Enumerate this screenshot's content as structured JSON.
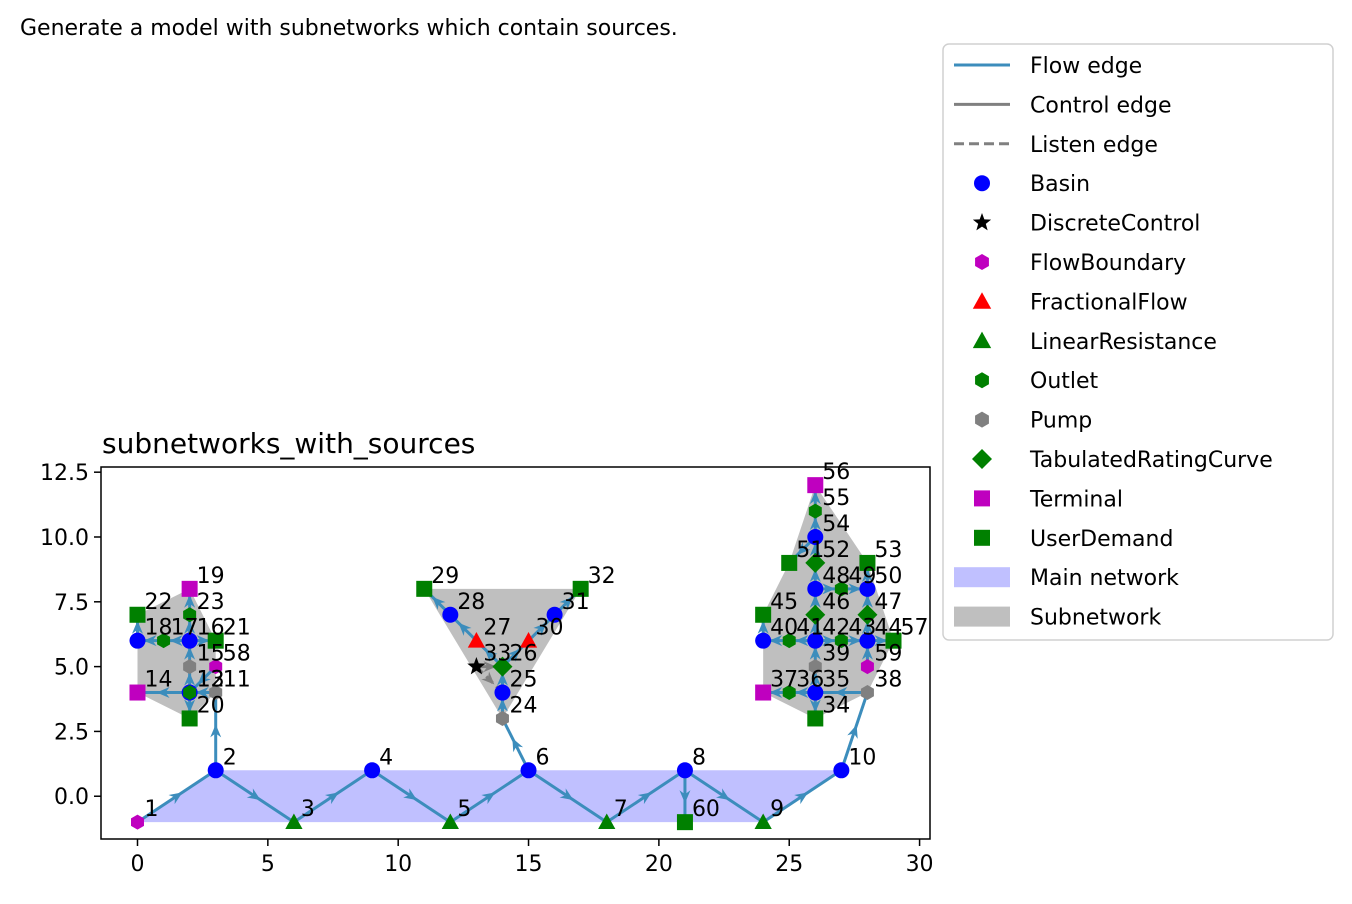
{
  "caption": "Generate a model with subnetworks which contain sources.",
  "title": "subnetworks_with_sources",
  "colors": {
    "flow_edge": "#3c8dbc",
    "control_edge": "#808080",
    "listen_edge": "#808080",
    "main_network": "#c0c0ff",
    "subnetwork": "#bfbfbf",
    "Basin": "#0000ff",
    "DiscreteControl": "#000000",
    "FlowBoundary": "#bf00bf",
    "FractionalFlow": "#ff0000",
    "LinearResistance": "#008000",
    "Outlet": "#008000",
    "Pump": "#808080",
    "TabulatedRatingCurve": "#008000",
    "Terminal": "#bf00bf",
    "UserDemand": "#008000"
  },
  "axes": {
    "xlim": [
      -1.4,
      30.4
    ],
    "ylim": [
      -1.65,
      12.7
    ],
    "xticks": [
      0,
      5,
      10,
      15,
      20,
      25,
      30
    ],
    "yticks": [
      0.0,
      2.5,
      5.0,
      7.5,
      10.0,
      12.5
    ],
    "xtick_labels": [
      "0",
      "5",
      "10",
      "15",
      "20",
      "25",
      "30"
    ],
    "ytick_labels": [
      "0.0",
      "2.5",
      "5.0",
      "7.5",
      "10.0",
      "12.5"
    ]
  },
  "legend": {
    "placement": "outside-right",
    "entries": [
      {
        "label": "Flow edge",
        "kind": "line",
        "style": "solid",
        "color": "#3c8dbc"
      },
      {
        "label": "Control edge",
        "kind": "line",
        "style": "solid",
        "color": "#808080"
      },
      {
        "label": "Listen edge",
        "kind": "line",
        "style": "dashed",
        "color": "#808080"
      },
      {
        "label": "Basin",
        "kind": "marker",
        "marker": "circle",
        "color": "#0000ff"
      },
      {
        "label": "DiscreteControl",
        "kind": "marker",
        "marker": "star",
        "color": "#000000"
      },
      {
        "label": "FlowBoundary",
        "kind": "marker",
        "marker": "hexagon",
        "color": "#bf00bf"
      },
      {
        "label": "FractionalFlow",
        "kind": "marker",
        "marker": "triangle",
        "color": "#ff0000"
      },
      {
        "label": "LinearResistance",
        "kind": "marker",
        "marker": "triangle",
        "color": "#008000"
      },
      {
        "label": "Outlet",
        "kind": "marker",
        "marker": "hexagon",
        "color": "#008000"
      },
      {
        "label": "Pump",
        "kind": "marker",
        "marker": "hexagon",
        "color": "#808080"
      },
      {
        "label": "TabulatedRatingCurve",
        "kind": "marker",
        "marker": "diamond",
        "color": "#008000"
      },
      {
        "label": "Terminal",
        "kind": "marker",
        "marker": "square",
        "color": "#bf00bf"
      },
      {
        "label": "UserDemand",
        "kind": "marker",
        "marker": "square",
        "color": "#008000"
      },
      {
        "label": "Main network",
        "kind": "patch",
        "color": "#c0c0ff"
      },
      {
        "label": "Subnetwork",
        "kind": "patch",
        "color": "#bfbfbf"
      }
    ]
  },
  "chart_data": {
    "type": "scatter",
    "title": "subnetworks_with_sources",
    "xlim": [
      -1.4,
      30.4
    ],
    "ylim": [
      -1.65,
      12.7
    ],
    "grid": false,
    "regions": [
      {
        "kind": "main",
        "points": [
          [
            0,
            -1
          ],
          [
            3,
            1
          ],
          [
            27,
            1
          ],
          [
            24,
            -1
          ]
        ]
      },
      {
        "kind": "sub",
        "points": [
          [
            0,
            4
          ],
          [
            0,
            7
          ],
          [
            2,
            8
          ],
          [
            3,
            6
          ],
          [
            3,
            4
          ],
          [
            2,
            3
          ]
        ]
      },
      {
        "kind": "sub",
        "points": [
          [
            11,
            8
          ],
          [
            17,
            8
          ],
          [
            14,
            3
          ]
        ]
      },
      {
        "kind": "sub",
        "points": [
          [
            24,
            4
          ],
          [
            24,
            7
          ],
          [
            25,
            9
          ],
          [
            26,
            12
          ],
          [
            28,
            9
          ],
          [
            29,
            6
          ],
          [
            28,
            4
          ],
          [
            26,
            3
          ]
        ]
      }
    ],
    "nodes": [
      {
        "id": "1",
        "type": "FlowBoundary",
        "x": 0,
        "y": -1
      },
      {
        "id": "2",
        "type": "Basin",
        "x": 3,
        "y": 1
      },
      {
        "id": "3",
        "type": "LinearResistance",
        "x": 6,
        "y": -1
      },
      {
        "id": "4",
        "type": "Basin",
        "x": 9,
        "y": 1
      },
      {
        "id": "5",
        "type": "LinearResistance",
        "x": 12,
        "y": -1
      },
      {
        "id": "6",
        "type": "Basin",
        "x": 15,
        "y": 1
      },
      {
        "id": "7",
        "type": "LinearResistance",
        "x": 18,
        "y": -1
      },
      {
        "id": "8",
        "type": "Basin",
        "x": 21,
        "y": 1
      },
      {
        "id": "9",
        "type": "LinearResistance",
        "x": 24,
        "y": -1
      },
      {
        "id": "10",
        "type": "Basin",
        "x": 27,
        "y": 1
      },
      {
        "id": "11",
        "type": "Pump",
        "x": 3,
        "y": 4
      },
      {
        "id": "12",
        "type": "Basin",
        "x": 2,
        "y": 4
      },
      {
        "id": "13",
        "type": "Outlet",
        "x": 2,
        "y": 4
      },
      {
        "id": "14",
        "type": "Terminal",
        "x": 0,
        "y": 4
      },
      {
        "id": "15",
        "type": "Pump",
        "x": 2,
        "y": 5
      },
      {
        "id": "16",
        "type": "Basin",
        "x": 2,
        "y": 6
      },
      {
        "id": "17",
        "type": "Outlet",
        "x": 1,
        "y": 6
      },
      {
        "id": "18",
        "type": "Basin",
        "x": 0,
        "y": 6
      },
      {
        "id": "19",
        "type": "Terminal",
        "x": 2,
        "y": 8
      },
      {
        "id": "20",
        "type": "UserDemand",
        "x": 2,
        "y": 3
      },
      {
        "id": "21",
        "type": "UserDemand",
        "x": 3,
        "y": 6
      },
      {
        "id": "22",
        "type": "UserDemand",
        "x": 0,
        "y": 7
      },
      {
        "id": "23",
        "type": "Outlet",
        "x": 2,
        "y": 7
      },
      {
        "id": "24",
        "type": "Pump",
        "x": 14,
        "y": 3
      },
      {
        "id": "25",
        "type": "Basin",
        "x": 14,
        "y": 4
      },
      {
        "id": "26",
        "type": "TabulatedRatingCurve",
        "x": 14,
        "y": 5
      },
      {
        "id": "27",
        "type": "FractionalFlow",
        "x": 13,
        "y": 6
      },
      {
        "id": "28",
        "type": "Basin",
        "x": 12,
        "y": 7
      },
      {
        "id": "29",
        "type": "UserDemand",
        "x": 11,
        "y": 8
      },
      {
        "id": "30",
        "type": "FractionalFlow",
        "x": 15,
        "y": 6
      },
      {
        "id": "31",
        "type": "Basin",
        "x": 16,
        "y": 7
      },
      {
        "id": "32",
        "type": "UserDemand",
        "x": 17,
        "y": 8
      },
      {
        "id": "33",
        "type": "DiscreteControl",
        "x": 13,
        "y": 5
      },
      {
        "id": "34",
        "type": "UserDemand",
        "x": 26,
        "y": 3
      },
      {
        "id": "35",
        "type": "Basin",
        "x": 26,
        "y": 4
      },
      {
        "id": "36",
        "type": "Outlet",
        "x": 25,
        "y": 4
      },
      {
        "id": "37",
        "type": "Terminal",
        "x": 24,
        "y": 4
      },
      {
        "id": "38",
        "type": "Pump",
        "x": 28,
        "y": 4
      },
      {
        "id": "39",
        "type": "Pump",
        "x": 26,
        "y": 5
      },
      {
        "id": "40",
        "type": "Basin",
        "x": 24,
        "y": 6
      },
      {
        "id": "41",
        "type": "Outlet",
        "x": 25,
        "y": 6
      },
      {
        "id": "42",
        "type": "Basin",
        "x": 26,
        "y": 6
      },
      {
        "id": "43",
        "type": "Outlet",
        "x": 27,
        "y": 6
      },
      {
        "id": "44",
        "type": "Basin",
        "x": 28,
        "y": 6
      },
      {
        "id": "45",
        "type": "UserDemand",
        "x": 24,
        "y": 7
      },
      {
        "id": "46",
        "type": "TabulatedRatingCurve",
        "x": 26,
        "y": 7
      },
      {
        "id": "47",
        "type": "TabulatedRatingCurve",
        "x": 28,
        "y": 7
      },
      {
        "id": "48",
        "type": "Basin",
        "x": 26,
        "y": 8
      },
      {
        "id": "49",
        "type": "Outlet",
        "x": 27,
        "y": 8
      },
      {
        "id": "50",
        "type": "Basin",
        "x": 28,
        "y": 8
      },
      {
        "id": "51",
        "type": "UserDemand",
        "x": 25,
        "y": 9
      },
      {
        "id": "52",
        "type": "TabulatedRatingCurve",
        "x": 26,
        "y": 9
      },
      {
        "id": "53",
        "type": "UserDemand",
        "x": 28,
        "y": 9
      },
      {
        "id": "54",
        "type": "Basin",
        "x": 26,
        "y": 10
      },
      {
        "id": "55",
        "type": "Outlet",
        "x": 26,
        "y": 11
      },
      {
        "id": "56",
        "type": "Terminal",
        "x": 26,
        "y": 12
      },
      {
        "id": "57",
        "type": "UserDemand",
        "x": 29,
        "y": 6
      },
      {
        "id": "58",
        "type": "FlowBoundary",
        "x": 3,
        "y": 5
      },
      {
        "id": "59",
        "type": "FlowBoundary",
        "x": 28,
        "y": 5
      },
      {
        "id": "60",
        "type": "UserDemand",
        "x": 21,
        "y": -1
      }
    ],
    "edges": [
      {
        "kind": "flow",
        "from": "1",
        "to": "2"
      },
      {
        "kind": "flow",
        "from": "2",
        "to": "3"
      },
      {
        "kind": "flow",
        "from": "3",
        "to": "4"
      },
      {
        "kind": "flow",
        "from": "4",
        "to": "5"
      },
      {
        "kind": "flow",
        "from": "5",
        "to": "6"
      },
      {
        "kind": "flow",
        "from": "6",
        "to": "7"
      },
      {
        "kind": "flow",
        "from": "7",
        "to": "8"
      },
      {
        "kind": "flow",
        "from": "8",
        "to": "9"
      },
      {
        "kind": "flow",
        "from": "9",
        "to": "10"
      },
      {
        "kind": "flow",
        "from": "8",
        "to": "60"
      },
      {
        "kind": "flow",
        "from": "2",
        "to": "11"
      },
      {
        "kind": "flow",
        "from": "11",
        "to": "12"
      },
      {
        "kind": "flow",
        "from": "12",
        "to": "13"
      },
      {
        "kind": "flow",
        "from": "13",
        "to": "14"
      },
      {
        "kind": "flow",
        "from": "12",
        "to": "15"
      },
      {
        "kind": "flow",
        "from": "15",
        "to": "16"
      },
      {
        "kind": "flow",
        "from": "16",
        "to": "17"
      },
      {
        "kind": "flow",
        "from": "17",
        "to": "18"
      },
      {
        "kind": "flow",
        "from": "16",
        "to": "23"
      },
      {
        "kind": "flow",
        "from": "23",
        "to": "19"
      },
      {
        "kind": "flow",
        "from": "12",
        "to": "20"
      },
      {
        "kind": "flow",
        "from": "16",
        "to": "21"
      },
      {
        "kind": "flow",
        "from": "18",
        "to": "22"
      },
      {
        "kind": "flow",
        "from": "6",
        "to": "24"
      },
      {
        "kind": "flow",
        "from": "24",
        "to": "25"
      },
      {
        "kind": "flow",
        "from": "25",
        "to": "26"
      },
      {
        "kind": "flow",
        "from": "26",
        "to": "27"
      },
      {
        "kind": "flow",
        "from": "27",
        "to": "28"
      },
      {
        "kind": "flow",
        "from": "28",
        "to": "29"
      },
      {
        "kind": "flow",
        "from": "26",
        "to": "30"
      },
      {
        "kind": "flow",
        "from": "30",
        "to": "31"
      },
      {
        "kind": "flow",
        "from": "31",
        "to": "32"
      },
      {
        "kind": "flow",
        "from": "10",
        "to": "38"
      },
      {
        "kind": "flow",
        "from": "38",
        "to": "35"
      },
      {
        "kind": "flow",
        "from": "35",
        "to": "36"
      },
      {
        "kind": "flow",
        "from": "36",
        "to": "37"
      },
      {
        "kind": "flow",
        "from": "35",
        "to": "34"
      },
      {
        "kind": "flow",
        "from": "35",
        "to": "39"
      },
      {
        "kind": "flow",
        "from": "39",
        "to": "42"
      },
      {
        "kind": "flow",
        "from": "42",
        "to": "41"
      },
      {
        "kind": "flow",
        "from": "41",
        "to": "40"
      },
      {
        "kind": "flow",
        "from": "40",
        "to": "45"
      },
      {
        "kind": "flow",
        "from": "42",
        "to": "43"
      },
      {
        "kind": "flow",
        "from": "43",
        "to": "44"
      },
      {
        "kind": "flow",
        "from": "44",
        "to": "57"
      },
      {
        "kind": "flow",
        "from": "44",
        "to": "47"
      },
      {
        "kind": "flow",
        "from": "47",
        "to": "50"
      },
      {
        "kind": "flow",
        "from": "42",
        "to": "46"
      },
      {
        "kind": "flow",
        "from": "46",
        "to": "48"
      },
      {
        "kind": "flow",
        "from": "48",
        "to": "49"
      },
      {
        "kind": "flow",
        "from": "49",
        "to": "50"
      },
      {
        "kind": "flow",
        "from": "50",
        "to": "53"
      },
      {
        "kind": "flow",
        "from": "48",
        "to": "52"
      },
      {
        "kind": "flow",
        "from": "52",
        "to": "54"
      },
      {
        "kind": "flow",
        "from": "54",
        "to": "51"
      },
      {
        "kind": "flow",
        "from": "54",
        "to": "55"
      },
      {
        "kind": "flow",
        "from": "55",
        "to": "56"
      },
      {
        "kind": "flow",
        "from": "59",
        "to": "44"
      },
      {
        "kind": "flow",
        "from": "58",
        "to": "12"
      },
      {
        "kind": "control",
        "from": "33",
        "to": "26"
      },
      {
        "kind": "listen",
        "from": "33",
        "to": "25"
      }
    ]
  }
}
